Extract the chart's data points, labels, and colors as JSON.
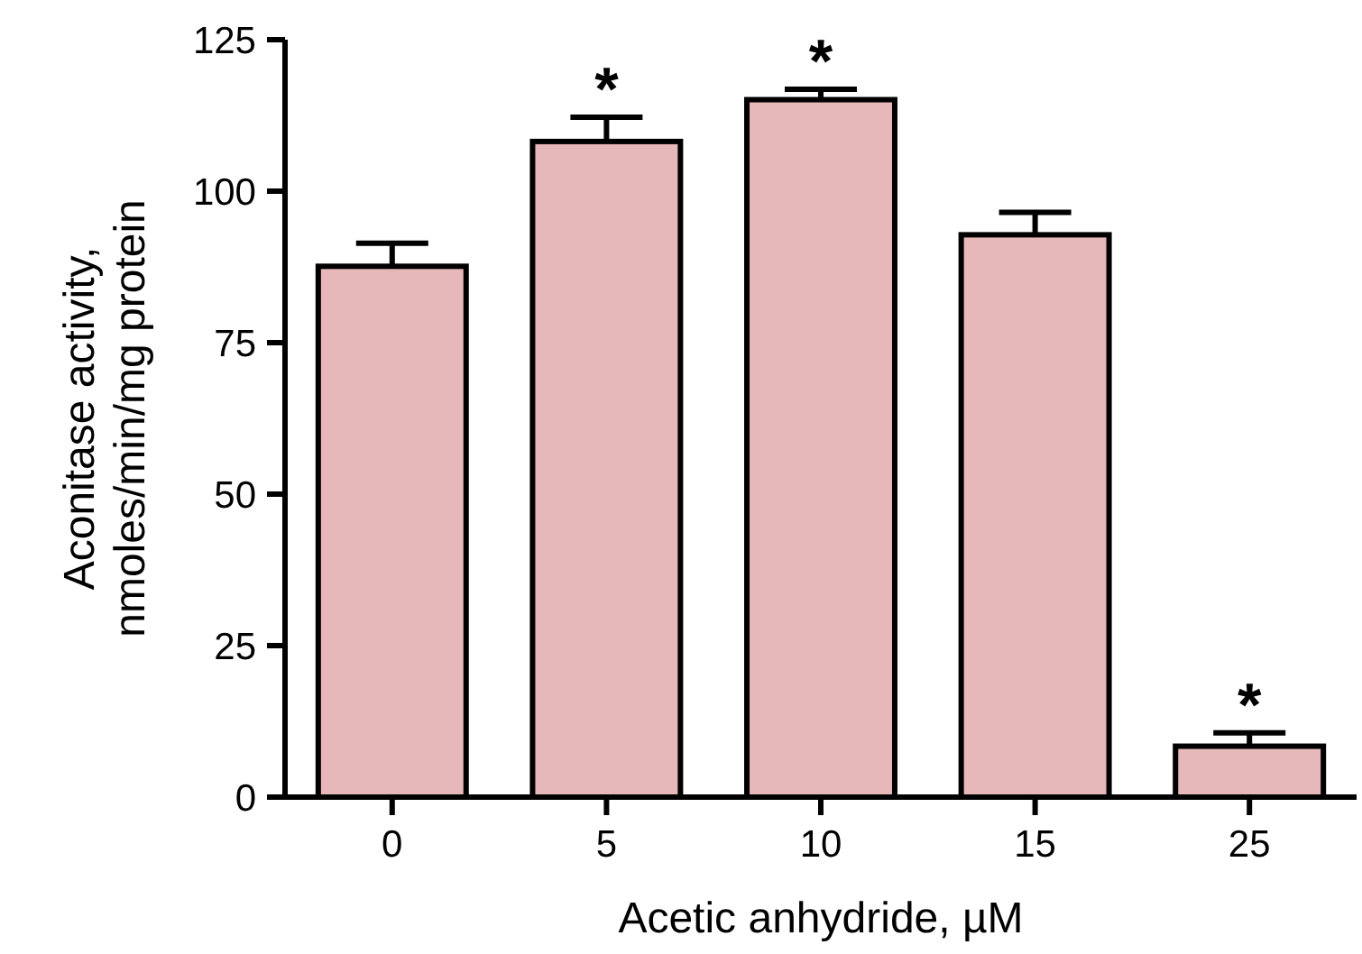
{
  "chart_data": {
    "type": "bar",
    "xlabel": "Acetic anhydride, µM",
    "ylabel": "Aconitase activity,\nnmoles/min/mg protein",
    "categories": [
      "0",
      "5",
      "10",
      "15",
      "25"
    ],
    "values": [
      87.6,
      108.2,
      115.1,
      92.8,
      8.4
    ],
    "errors": [
      [
        87.6,
        91.4
      ],
      [
        108.2,
        112.2
      ],
      [
        115.1,
        116.8
      ],
      [
        92.8,
        96.5
      ],
      [
        8.4,
        10.6
      ]
    ],
    "color": "#e6b8b9",
    "ylim": [
      0,
      125
    ],
    "yticks": [
      0,
      25,
      50,
      75,
      100,
      125
    ],
    "grid": false,
    "annotations": [
      {
        "text": "*",
        "x": "5",
        "y": 112.2
      },
      {
        "text": "*",
        "x": "10",
        "y": 116.8
      },
      {
        "text": "*",
        "x": "25",
        "y": 10.6
      }
    ]
  }
}
